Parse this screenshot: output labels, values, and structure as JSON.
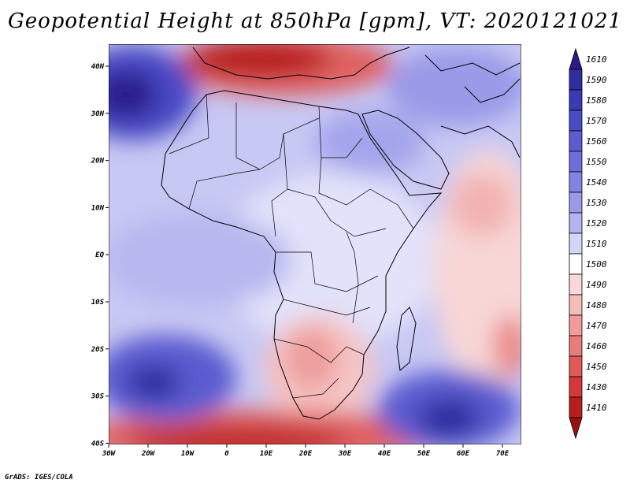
{
  "title": "Geopotential Height at 850hPa [gpm], VT: 2020121021",
  "credit": "GrADS: IGES/COLA",
  "axes": {
    "lon_labels": [
      "30W",
      "20W",
      "10W",
      "0",
      "10E",
      "20E",
      "30E",
      "40E",
      "50E",
      "60E",
      "70E"
    ],
    "lat_labels": [
      "40N",
      "30N",
      "20N",
      "10N",
      "EQ",
      "10S",
      "20S",
      "30S",
      "40S"
    ]
  },
  "chart_data": {
    "type": "heatmap",
    "variable": "Geopotential Height",
    "level": "850hPa",
    "units": "gpm",
    "valid_time": "2020121021",
    "lon_range": [
      -30,
      75
    ],
    "lat_range": [
      -40,
      45
    ],
    "colorbar": {
      "labels": [
        1610,
        1590,
        1580,
        1570,
        1560,
        1550,
        1540,
        1530,
        1520,
        1510,
        1500,
        1490,
        1480,
        1470,
        1460,
        1450,
        1430,
        1410
      ],
      "colors": [
        "#2a1a8a",
        "#2e2ea0",
        "#3a3ab4",
        "#4a4ac4",
        "#5c5cd0",
        "#6e6ed8",
        "#8282e0",
        "#9a9ae8",
        "#b4b4f0",
        "#d4d4f8",
        "#ffffff",
        "#fbd8d8",
        "#f6bcbc",
        "#f09c9c",
        "#e87c7c",
        "#e05a5a",
        "#d23a3a",
        "#b81e1e",
        "#9a1010"
      ]
    }
  }
}
